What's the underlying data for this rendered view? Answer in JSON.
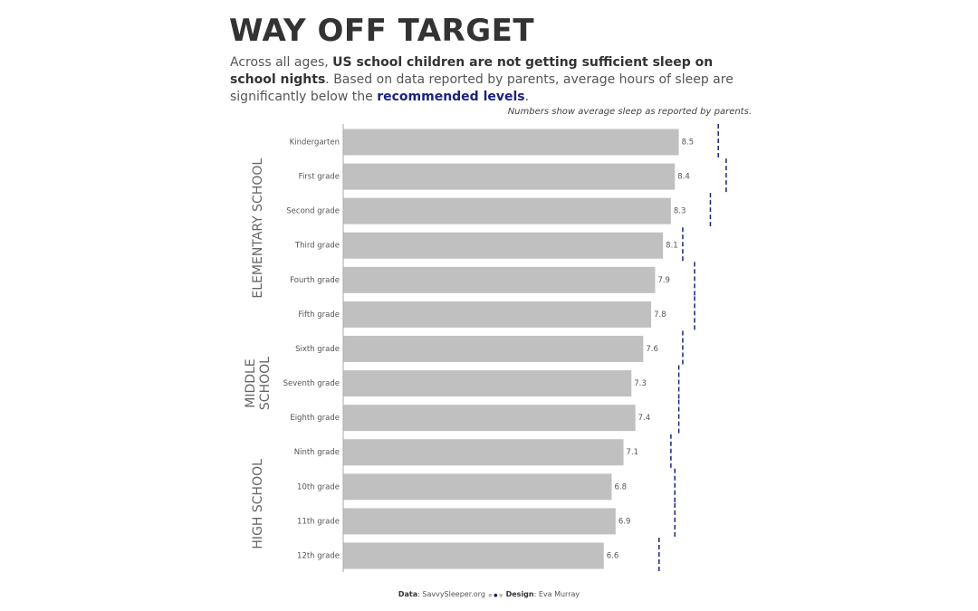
{
  "chart_data": {
    "type": "bar",
    "orientation": "horizontal",
    "title": "WAY OFF TARGET",
    "subtitle": [
      {
        "text": "Across all ages, "
      },
      {
        "text": "US school children are not getting sufficient sleep on school nights",
        "style": "bold"
      },
      {
        "text": ". Based on data reported by parents, average hours of sleep are significantly below the "
      },
      {
        "text": "recommended levels",
        "style": "accent"
      },
      {
        "text": "."
      }
    ],
    "note": "Numbers show average sleep as reported by parents.",
    "categories": [
      "Kindergarten",
      "First grade",
      "Second grade",
      "Third grade",
      "Fourth grade",
      "Fifth grade",
      "Sixth grade",
      "Seventh grade",
      "Eighth grade",
      "Ninth grade",
      "10th grade",
      "11th grade",
      "12th grade"
    ],
    "values": [
      8.5,
      8.4,
      8.3,
      8.1,
      7.9,
      7.8,
      7.6,
      7.3,
      7.4,
      7.1,
      6.8,
      6.9,
      6.6
    ],
    "color": "#c0c0c0",
    "target_values": [
      9.5,
      9.7,
      9.3,
      8.6,
      8.9,
      8.9,
      8.6,
      8.5,
      8.5,
      8.3,
      8.4,
      8.4,
      8.0
    ],
    "target_color": "#1a237e",
    "group_labels": [
      [
        "ELEMENTARY SCHOOL"
      ],
      [
        "MIDDLE",
        "SCHOOL"
      ],
      [
        "HIGH SCHOOL"
      ]
    ],
    "xlim": [
      0,
      10
    ],
    "footer": [
      {
        "text": "Data",
        "style": "bold"
      },
      {
        "text": ": SavvySleeper.org"
      },
      {
        "text": "Design",
        "style": "bold"
      },
      {
        "text": ": Eva Murray"
      }
    ]
  }
}
